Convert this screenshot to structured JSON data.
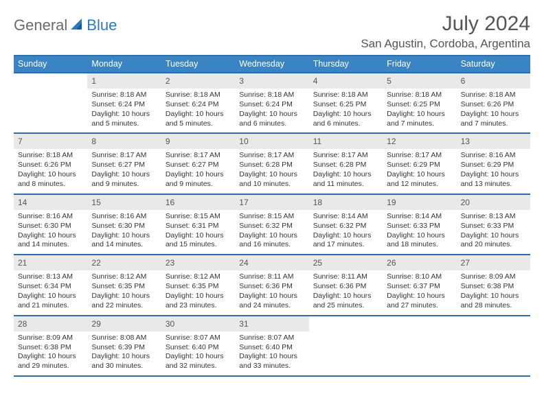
{
  "brand": {
    "part1": "General",
    "part2": "Blue"
  },
  "title": "July 2024",
  "location": "San Agustin, Cordoba, Argentina",
  "colors": {
    "header_bg": "#3b84c4",
    "header_border": "#2e6da8",
    "daynum_bg": "#e9e9e9",
    "brand_gray": "#6b6b6b",
    "brand_blue": "#2e78c0",
    "text": "#333333"
  },
  "day_headers": [
    "Sunday",
    "Monday",
    "Tuesday",
    "Wednesday",
    "Thursday",
    "Friday",
    "Saturday"
  ],
  "weeks": [
    [
      {
        "empty": true
      },
      {
        "day": "1",
        "sunrise": "Sunrise: 8:18 AM",
        "sunset": "Sunset: 6:24 PM",
        "dl1": "Daylight: 10 hours",
        "dl2": "and 5 minutes."
      },
      {
        "day": "2",
        "sunrise": "Sunrise: 8:18 AM",
        "sunset": "Sunset: 6:24 PM",
        "dl1": "Daylight: 10 hours",
        "dl2": "and 5 minutes."
      },
      {
        "day": "3",
        "sunrise": "Sunrise: 8:18 AM",
        "sunset": "Sunset: 6:24 PM",
        "dl1": "Daylight: 10 hours",
        "dl2": "and 6 minutes."
      },
      {
        "day": "4",
        "sunrise": "Sunrise: 8:18 AM",
        "sunset": "Sunset: 6:25 PM",
        "dl1": "Daylight: 10 hours",
        "dl2": "and 6 minutes."
      },
      {
        "day": "5",
        "sunrise": "Sunrise: 8:18 AM",
        "sunset": "Sunset: 6:25 PM",
        "dl1": "Daylight: 10 hours",
        "dl2": "and 7 minutes."
      },
      {
        "day": "6",
        "sunrise": "Sunrise: 8:18 AM",
        "sunset": "Sunset: 6:26 PM",
        "dl1": "Daylight: 10 hours",
        "dl2": "and 7 minutes."
      }
    ],
    [
      {
        "day": "7",
        "sunrise": "Sunrise: 8:18 AM",
        "sunset": "Sunset: 6:26 PM",
        "dl1": "Daylight: 10 hours",
        "dl2": "and 8 minutes."
      },
      {
        "day": "8",
        "sunrise": "Sunrise: 8:17 AM",
        "sunset": "Sunset: 6:27 PM",
        "dl1": "Daylight: 10 hours",
        "dl2": "and 9 minutes."
      },
      {
        "day": "9",
        "sunrise": "Sunrise: 8:17 AM",
        "sunset": "Sunset: 6:27 PM",
        "dl1": "Daylight: 10 hours",
        "dl2": "and 9 minutes."
      },
      {
        "day": "10",
        "sunrise": "Sunrise: 8:17 AM",
        "sunset": "Sunset: 6:28 PM",
        "dl1": "Daylight: 10 hours",
        "dl2": "and 10 minutes."
      },
      {
        "day": "11",
        "sunrise": "Sunrise: 8:17 AM",
        "sunset": "Sunset: 6:28 PM",
        "dl1": "Daylight: 10 hours",
        "dl2": "and 11 minutes."
      },
      {
        "day": "12",
        "sunrise": "Sunrise: 8:17 AM",
        "sunset": "Sunset: 6:29 PM",
        "dl1": "Daylight: 10 hours",
        "dl2": "and 12 minutes."
      },
      {
        "day": "13",
        "sunrise": "Sunrise: 8:16 AM",
        "sunset": "Sunset: 6:29 PM",
        "dl1": "Daylight: 10 hours",
        "dl2": "and 13 minutes."
      }
    ],
    [
      {
        "day": "14",
        "sunrise": "Sunrise: 8:16 AM",
        "sunset": "Sunset: 6:30 PM",
        "dl1": "Daylight: 10 hours",
        "dl2": "and 14 minutes."
      },
      {
        "day": "15",
        "sunrise": "Sunrise: 8:16 AM",
        "sunset": "Sunset: 6:30 PM",
        "dl1": "Daylight: 10 hours",
        "dl2": "and 14 minutes."
      },
      {
        "day": "16",
        "sunrise": "Sunrise: 8:15 AM",
        "sunset": "Sunset: 6:31 PM",
        "dl1": "Daylight: 10 hours",
        "dl2": "and 15 minutes."
      },
      {
        "day": "17",
        "sunrise": "Sunrise: 8:15 AM",
        "sunset": "Sunset: 6:32 PM",
        "dl1": "Daylight: 10 hours",
        "dl2": "and 16 minutes."
      },
      {
        "day": "18",
        "sunrise": "Sunrise: 8:14 AM",
        "sunset": "Sunset: 6:32 PM",
        "dl1": "Daylight: 10 hours",
        "dl2": "and 17 minutes."
      },
      {
        "day": "19",
        "sunrise": "Sunrise: 8:14 AM",
        "sunset": "Sunset: 6:33 PM",
        "dl1": "Daylight: 10 hours",
        "dl2": "and 18 minutes."
      },
      {
        "day": "20",
        "sunrise": "Sunrise: 8:13 AM",
        "sunset": "Sunset: 6:33 PM",
        "dl1": "Daylight: 10 hours",
        "dl2": "and 20 minutes."
      }
    ],
    [
      {
        "day": "21",
        "sunrise": "Sunrise: 8:13 AM",
        "sunset": "Sunset: 6:34 PM",
        "dl1": "Daylight: 10 hours",
        "dl2": "and 21 minutes."
      },
      {
        "day": "22",
        "sunrise": "Sunrise: 8:12 AM",
        "sunset": "Sunset: 6:35 PM",
        "dl1": "Daylight: 10 hours",
        "dl2": "and 22 minutes."
      },
      {
        "day": "23",
        "sunrise": "Sunrise: 8:12 AM",
        "sunset": "Sunset: 6:35 PM",
        "dl1": "Daylight: 10 hours",
        "dl2": "and 23 minutes."
      },
      {
        "day": "24",
        "sunrise": "Sunrise: 8:11 AM",
        "sunset": "Sunset: 6:36 PM",
        "dl1": "Daylight: 10 hours",
        "dl2": "and 24 minutes."
      },
      {
        "day": "25",
        "sunrise": "Sunrise: 8:11 AM",
        "sunset": "Sunset: 6:36 PM",
        "dl1": "Daylight: 10 hours",
        "dl2": "and 25 minutes."
      },
      {
        "day": "26",
        "sunrise": "Sunrise: 8:10 AM",
        "sunset": "Sunset: 6:37 PM",
        "dl1": "Daylight: 10 hours",
        "dl2": "and 27 minutes."
      },
      {
        "day": "27",
        "sunrise": "Sunrise: 8:09 AM",
        "sunset": "Sunset: 6:38 PM",
        "dl1": "Daylight: 10 hours",
        "dl2": "and 28 minutes."
      }
    ],
    [
      {
        "day": "28",
        "sunrise": "Sunrise: 8:09 AM",
        "sunset": "Sunset: 6:38 PM",
        "dl1": "Daylight: 10 hours",
        "dl2": "and 29 minutes."
      },
      {
        "day": "29",
        "sunrise": "Sunrise: 8:08 AM",
        "sunset": "Sunset: 6:39 PM",
        "dl1": "Daylight: 10 hours",
        "dl2": "and 30 minutes."
      },
      {
        "day": "30",
        "sunrise": "Sunrise: 8:07 AM",
        "sunset": "Sunset: 6:40 PM",
        "dl1": "Daylight: 10 hours",
        "dl2": "and 32 minutes."
      },
      {
        "day": "31",
        "sunrise": "Sunrise: 8:07 AM",
        "sunset": "Sunset: 6:40 PM",
        "dl1": "Daylight: 10 hours",
        "dl2": "and 33 minutes."
      },
      {
        "empty": true
      },
      {
        "empty": true
      },
      {
        "empty": true
      }
    ]
  ]
}
